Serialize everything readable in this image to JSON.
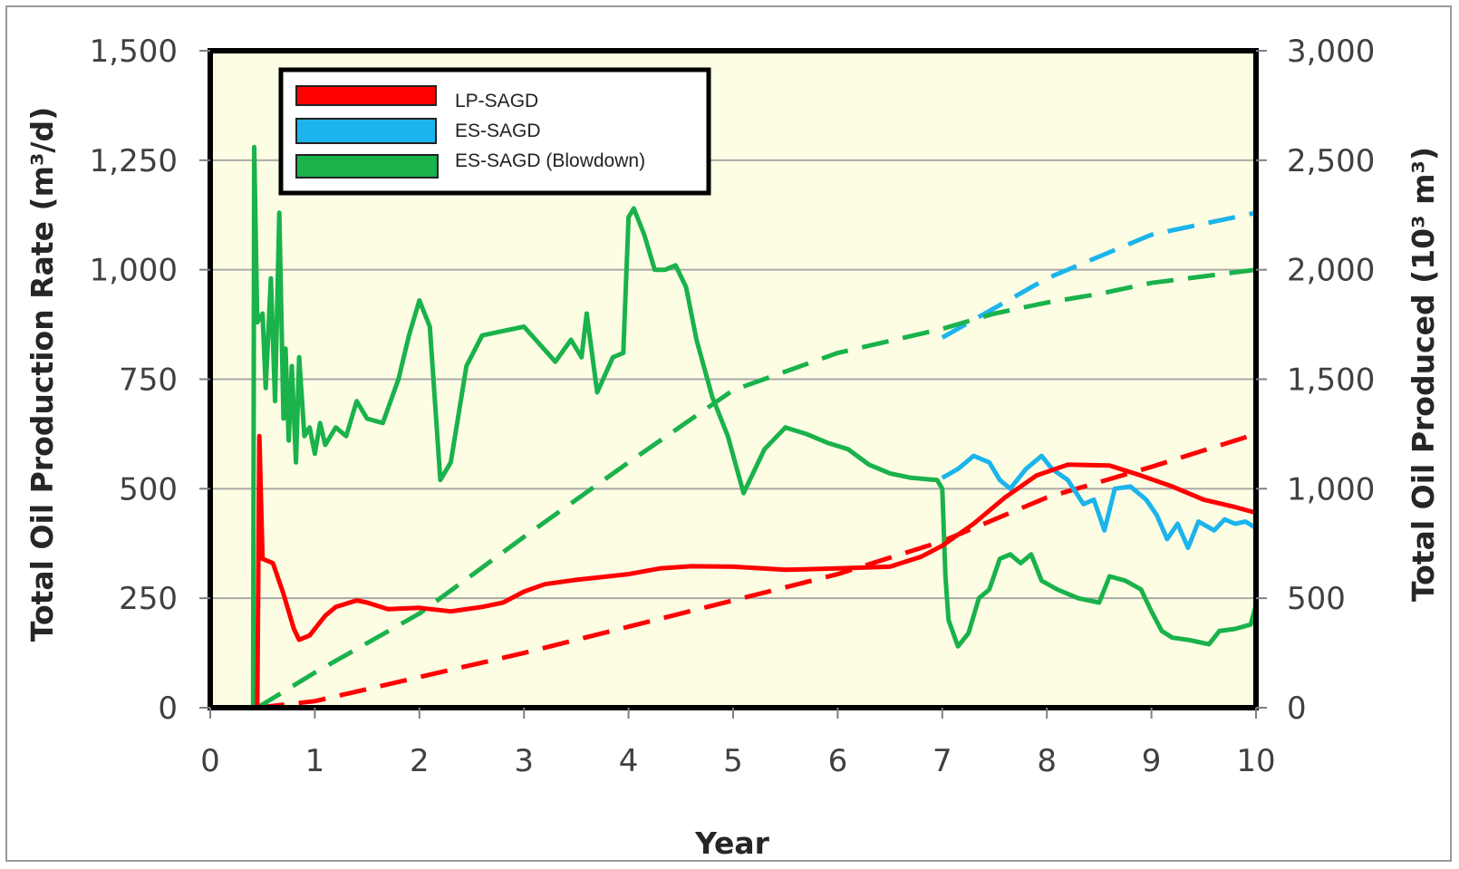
{
  "chart_data": {
    "type": "line",
    "xlabel": "Year",
    "ylabel_left": "Total Oil Production Rate (m³/d)",
    "ylabel_right": "Total Oil Produced (10³ m³)",
    "xlim": [
      0,
      10
    ],
    "ylim_left": [
      0,
      1500
    ],
    "ylim_right": [
      0,
      3000
    ],
    "x_ticks": [
      "0",
      "1",
      "2",
      "3",
      "4",
      "5",
      "6",
      "7",
      "8",
      "9",
      "10"
    ],
    "y_ticks_left": [
      "0",
      "250",
      "500",
      "750",
      "1,000",
      "1,250",
      "1,500"
    ],
    "y_ticks_right": [
      "0",
      "500",
      "1,000",
      "1,500",
      "2,000",
      "2,500",
      "3,000"
    ],
    "grid": "horizontal",
    "legend_position": "top-left",
    "background_color": "#fdfde4",
    "legend": [
      {
        "label": "LP-SAGD",
        "color": "#ff0000"
      },
      {
        "label": "ES-SAGD",
        "color": "#1cb4ec"
      },
      {
        "label": "ES-SAGD (Blowdown)",
        "color": "#19b24b"
      }
    ],
    "series": [
      {
        "name": "LP-SAGD",
        "axis": "left",
        "style": "solid",
        "color": "#ff0000",
        "points": [
          [
            0.45,
            0
          ],
          [
            0.47,
            620
          ],
          [
            0.5,
            340
          ],
          [
            0.6,
            330
          ],
          [
            0.7,
            260
          ],
          [
            0.8,
            180
          ],
          [
            0.85,
            155
          ],
          [
            0.95,
            165
          ],
          [
            1.1,
            210
          ],
          [
            1.2,
            230
          ],
          [
            1.4,
            245
          ],
          [
            1.5,
            240
          ],
          [
            1.7,
            225
          ],
          [
            2.0,
            228
          ],
          [
            2.3,
            220
          ],
          [
            2.6,
            230
          ],
          [
            2.8,
            240
          ],
          [
            3.0,
            265
          ],
          [
            3.2,
            282
          ],
          [
            3.5,
            292
          ],
          [
            4.0,
            305
          ],
          [
            4.3,
            318
          ],
          [
            4.6,
            323
          ],
          [
            5.0,
            322
          ],
          [
            5.5,
            315
          ],
          [
            6.0,
            318
          ],
          [
            6.5,
            322
          ],
          [
            6.8,
            345
          ],
          [
            7.0,
            370
          ],
          [
            7.3,
            420
          ],
          [
            7.6,
            480
          ],
          [
            7.9,
            530
          ],
          [
            8.2,
            555
          ],
          [
            8.6,
            553
          ],
          [
            8.9,
            530
          ],
          [
            9.2,
            505
          ],
          [
            9.5,
            475
          ],
          [
            9.8,
            458
          ],
          [
            10.0,
            445
          ]
        ]
      },
      {
        "name": "LP-SAGD",
        "axis": "right",
        "style": "dashed",
        "color": "#ff0000",
        "points": [
          [
            0.45,
            0
          ],
          [
            1,
            30
          ],
          [
            2,
            140
          ],
          [
            3,
            250
          ],
          [
            4,
            370
          ],
          [
            5,
            490
          ],
          [
            6,
            610
          ],
          [
            7,
            760
          ],
          [
            8,
            960
          ],
          [
            9,
            1100
          ],
          [
            10,
            1250
          ]
        ]
      },
      {
        "name": "ES-SAGD",
        "axis": "left",
        "style": "solid",
        "color": "#1cb4ec",
        "points": [
          [
            7.0,
            525
          ],
          [
            7.15,
            545
          ],
          [
            7.3,
            575
          ],
          [
            7.45,
            560
          ],
          [
            7.55,
            520
          ],
          [
            7.65,
            500
          ],
          [
            7.8,
            545
          ],
          [
            7.95,
            575
          ],
          [
            8.05,
            545
          ],
          [
            8.2,
            520
          ],
          [
            8.35,
            465
          ],
          [
            8.45,
            475
          ],
          [
            8.55,
            405
          ],
          [
            8.65,
            500
          ],
          [
            8.8,
            505
          ],
          [
            8.95,
            475
          ],
          [
            9.05,
            440
          ],
          [
            9.15,
            385
          ],
          [
            9.25,
            420
          ],
          [
            9.35,
            365
          ],
          [
            9.45,
            425
          ],
          [
            9.6,
            405
          ],
          [
            9.7,
            430
          ],
          [
            9.8,
            420
          ],
          [
            9.9,
            425
          ],
          [
            10.0,
            410
          ]
        ]
      },
      {
        "name": "ES-SAGD",
        "axis": "right",
        "style": "dashed",
        "color": "#1cb4ec",
        "points": [
          [
            7.0,
            1690
          ],
          [
            8.0,
            1960
          ],
          [
            9.0,
            2160
          ],
          [
            10.0,
            2260
          ]
        ]
      },
      {
        "name": "ES-SAGD (Blowdown)",
        "axis": "left",
        "style": "solid",
        "color": "#19b24b",
        "points": [
          [
            0,
            0
          ],
          [
            0.4,
            0
          ],
          [
            0.41,
            0
          ],
          [
            0.42,
            1280
          ],
          [
            0.45,
            880
          ],
          [
            0.5,
            900
          ],
          [
            0.53,
            730
          ],
          [
            0.58,
            980
          ],
          [
            0.62,
            700
          ],
          [
            0.66,
            1130
          ],
          [
            0.7,
            660
          ],
          [
            0.72,
            820
          ],
          [
            0.75,
            610
          ],
          [
            0.78,
            780
          ],
          [
            0.82,
            560
          ],
          [
            0.85,
            800
          ],
          [
            0.9,
            620
          ],
          [
            0.95,
            640
          ],
          [
            1.0,
            580
          ],
          [
            1.05,
            650
          ],
          [
            1.1,
            600
          ],
          [
            1.2,
            640
          ],
          [
            1.3,
            620
          ],
          [
            1.4,
            700
          ],
          [
            1.5,
            660
          ],
          [
            1.65,
            650
          ],
          [
            1.8,
            750
          ],
          [
            1.9,
            850
          ],
          [
            2.0,
            930
          ],
          [
            2.1,
            870
          ],
          [
            2.2,
            520
          ],
          [
            2.3,
            560
          ],
          [
            2.45,
            780
          ],
          [
            2.6,
            850
          ],
          [
            2.8,
            860
          ],
          [
            3.0,
            870
          ],
          [
            3.15,
            830
          ],
          [
            3.3,
            790
          ],
          [
            3.45,
            840
          ],
          [
            3.55,
            800
          ],
          [
            3.6,
            900
          ],
          [
            3.7,
            720
          ],
          [
            3.85,
            800
          ],
          [
            3.95,
            810
          ],
          [
            4.0,
            1120
          ],
          [
            4.05,
            1140
          ],
          [
            4.15,
            1080
          ],
          [
            4.25,
            1000
          ],
          [
            4.35,
            1000
          ],
          [
            4.45,
            1010
          ],
          [
            4.55,
            960
          ],
          [
            4.65,
            840
          ],
          [
            4.8,
            710
          ],
          [
            4.95,
            620
          ],
          [
            5.1,
            490
          ],
          [
            5.3,
            590
          ],
          [
            5.5,
            640
          ],
          [
            5.7,
            625
          ],
          [
            5.9,
            605
          ],
          [
            6.1,
            590
          ],
          [
            6.3,
            555
          ],
          [
            6.5,
            535
          ],
          [
            6.7,
            525
          ],
          [
            6.95,
            520
          ],
          [
            7.0,
            500
          ],
          [
            7.03,
            300
          ],
          [
            7.06,
            200
          ],
          [
            7.15,
            140
          ],
          [
            7.25,
            170
          ],
          [
            7.35,
            250
          ],
          [
            7.45,
            270
          ],
          [
            7.55,
            340
          ],
          [
            7.65,
            350
          ],
          [
            7.75,
            330
          ],
          [
            7.85,
            350
          ],
          [
            7.95,
            290
          ],
          [
            8.1,
            270
          ],
          [
            8.3,
            250
          ],
          [
            8.5,
            240
          ],
          [
            8.6,
            300
          ],
          [
            8.75,
            290
          ],
          [
            8.9,
            270
          ],
          [
            9.0,
            220
          ],
          [
            9.1,
            175
          ],
          [
            9.2,
            160
          ],
          [
            9.35,
            155
          ],
          [
            9.45,
            150
          ],
          [
            9.55,
            145
          ],
          [
            9.65,
            175
          ],
          [
            9.8,
            180
          ],
          [
            9.95,
            190
          ],
          [
            10.0,
            235
          ]
        ]
      },
      {
        "name": "ES-SAGD (Blowdown)",
        "axis": "right",
        "style": "dashed",
        "color": "#19b24b",
        "points": [
          [
            0.45,
            0
          ],
          [
            1,
            160
          ],
          [
            2,
            430
          ],
          [
            3,
            780
          ],
          [
            4,
            1120
          ],
          [
            5,
            1450
          ],
          [
            6,
            1620
          ],
          [
            7,
            1730
          ],
          [
            7.5,
            1800
          ],
          [
            8,
            1850
          ],
          [
            8.5,
            1890
          ],
          [
            9,
            1940
          ],
          [
            10,
            2000
          ]
        ]
      }
    ]
  }
}
